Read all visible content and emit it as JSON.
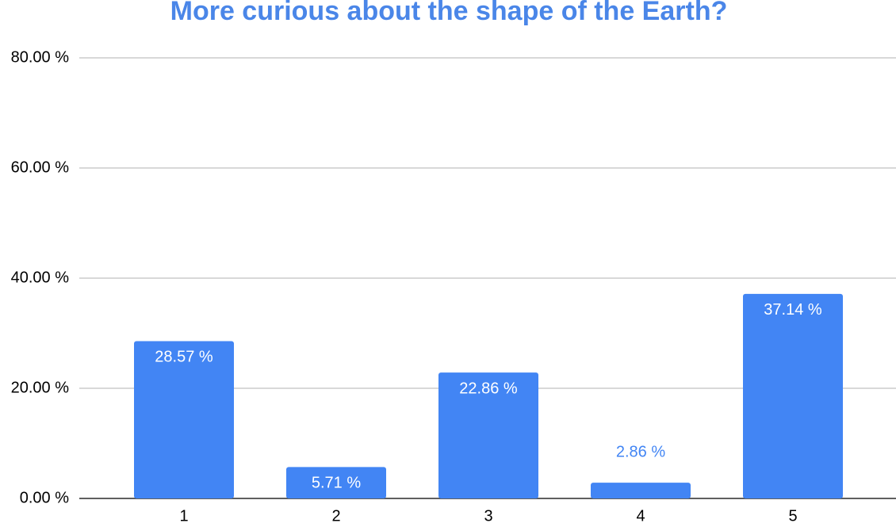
{
  "chart_data": {
    "type": "bar",
    "title": "More curious about the shape of the Earth?",
    "categories": [
      "1",
      "2",
      "3",
      "4",
      "5"
    ],
    "values": [
      28.57,
      5.71,
      22.86,
      2.86,
      37.14
    ],
    "value_labels": [
      "28.57 %",
      "5.71 %",
      "22.86 %",
      "2.86 %",
      "37.14 %"
    ],
    "color": "#4285f4",
    "ylim": [
      0,
      80
    ],
    "yticks": [
      {
        "value": 0,
        "label": "0.00 %"
      },
      {
        "value": 20,
        "label": "20.00 %"
      },
      {
        "value": 40,
        "label": "40.00 %"
      },
      {
        "value": 60,
        "label": "60.00 %"
      },
      {
        "value": 80,
        "label": "80.00 %"
      }
    ],
    "grid": true
  }
}
